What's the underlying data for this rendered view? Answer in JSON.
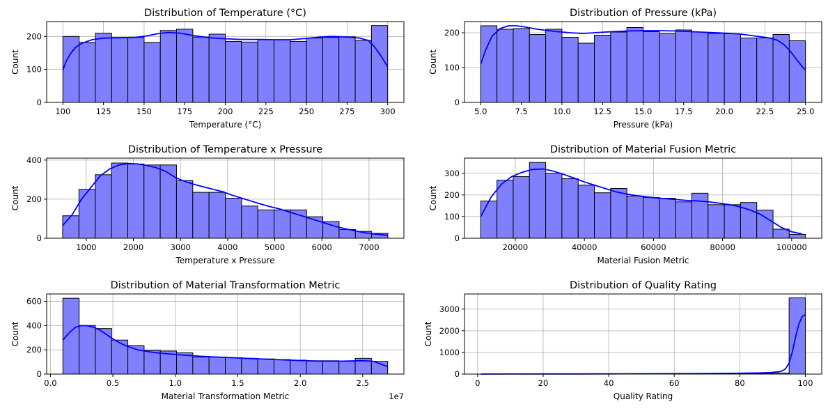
{
  "chart_data": [
    {
      "type": "bar",
      "title": "Distribution of Temperature (°C)",
      "xlabel": "Temperature (°C)",
      "ylabel": "Count",
      "xlim": [
        90,
        310
      ],
      "ylim": [
        0,
        245
      ],
      "bin_edges": [
        100,
        110,
        120,
        130,
        140,
        150,
        160,
        170,
        180,
        190,
        200,
        210,
        220,
        230,
        240,
        250,
        260,
        270,
        280,
        290,
        300
      ],
      "values": [
        200,
        182,
        210,
        197,
        197,
        182,
        218,
        222,
        198,
        207,
        185,
        183,
        190,
        190,
        185,
        195,
        197,
        199,
        188,
        233
      ],
      "kde": [
        [
          100,
          98
        ],
        [
          102,
          125
        ],
        [
          105,
          150
        ],
        [
          108,
          168
        ],
        [
          112,
          180
        ],
        [
          118,
          190
        ],
        [
          125,
          195
        ],
        [
          135,
          196
        ],
        [
          145,
          197
        ],
        [
          152,
          202
        ],
        [
          158,
          208
        ],
        [
          165,
          212
        ],
        [
          172,
          210
        ],
        [
          180,
          203
        ],
        [
          190,
          196
        ],
        [
          200,
          193
        ],
        [
          210,
          191
        ],
        [
          220,
          191
        ],
        [
          230,
          190
        ],
        [
          240,
          190
        ],
        [
          250,
          194
        ],
        [
          258,
          198
        ],
        [
          265,
          200
        ],
        [
          272,
          199
        ],
        [
          278,
          197
        ],
        [
          283,
          195
        ],
        [
          288,
          188
        ],
        [
          292,
          168
        ],
        [
          296,
          140
        ],
        [
          300,
          108
        ]
      ],
      "xticks": [
        100,
        125,
        150,
        175,
        200,
        225,
        250,
        275,
        300
      ],
      "xtick_labels": [
        "100",
        "125",
        "150",
        "175",
        "200",
        "225",
        "250",
        "275",
        "300"
      ],
      "yticks": [
        0,
        100,
        200
      ],
      "ytick_labels": [
        "0",
        "100",
        "200"
      ],
      "bar_color": "#8080ff",
      "kde_color": "#0000ff",
      "grid": true
    },
    {
      "type": "bar",
      "title": "Distribution of Pressure (kPa)",
      "xlabel": "Pressure (kPa)",
      "ylabel": "Count",
      "xlim": [
        4,
        26
      ],
      "ylim": [
        0,
        232
      ],
      "bin_edges": [
        5,
        6,
        7,
        8,
        9,
        10,
        11,
        12,
        13,
        14,
        15,
        16,
        17,
        18,
        19,
        20,
        21,
        22,
        23,
        24,
        25
      ],
      "values": [
        220,
        210,
        212,
        195,
        210,
        187,
        170,
        193,
        202,
        215,
        203,
        197,
        208,
        202,
        198,
        197,
        185,
        185,
        195,
        177
      ],
      "kde": [
        [
          5,
          110
        ],
        [
          5.3,
          150
        ],
        [
          5.7,
          190
        ],
        [
          6.2,
          212
        ],
        [
          6.7,
          220
        ],
        [
          7.2,
          220
        ],
        [
          7.8,
          216
        ],
        [
          8.5,
          210
        ],
        [
          9.5,
          204
        ],
        [
          10.5,
          200
        ],
        [
          11.3,
          198
        ],
        [
          12,
          200
        ],
        [
          13,
          203
        ],
        [
          14,
          205
        ],
        [
          15,
          206
        ],
        [
          16,
          206
        ],
        [
          17,
          205
        ],
        [
          18,
          203
        ],
        [
          19,
          201
        ],
        [
          20,
          199
        ],
        [
          21,
          196
        ],
        [
          22,
          190
        ],
        [
          22.8,
          185
        ],
        [
          23.3,
          178
        ],
        [
          23.7,
          165
        ],
        [
          24.1,
          145
        ],
        [
          24.5,
          120
        ],
        [
          25,
          92
        ]
      ],
      "xticks": [
        5,
        7.5,
        10,
        12.5,
        15,
        17.5,
        20,
        22.5,
        25
      ],
      "xtick_labels": [
        "5.0",
        "7.5",
        "10.0",
        "12.5",
        "15.0",
        "17.5",
        "20.0",
        "22.5",
        "25.0"
      ],
      "yticks": [
        0,
        100,
        200
      ],
      "ytick_labels": [
        "0",
        "100",
        "200"
      ],
      "bar_color": "#8080ff",
      "kde_color": "#0000ff",
      "grid": true
    },
    {
      "type": "bar",
      "title": "Distribution of Temperature x Pressure",
      "xlabel": "Temperature x Pressure",
      "ylabel": "Count",
      "xlim": [
        160,
        7740
      ],
      "ylim": [
        0,
        410
      ],
      "bin_edges": [
        500,
        845,
        1190,
        1535,
        1880,
        2225,
        2570,
        2915,
        3260,
        3605,
        3950,
        4295,
        4640,
        4985,
        5330,
        5675,
        6020,
        6365,
        6710,
        7055,
        7400
      ],
      "values": [
        115,
        250,
        325,
        385,
        380,
        375,
        375,
        295,
        235,
        235,
        205,
        165,
        145,
        145,
        145,
        110,
        85,
        45,
        35,
        25
      ],
      "kde": [
        [
          500,
          65
        ],
        [
          700,
          120
        ],
        [
          900,
          200
        ],
        [
          1100,
          260
        ],
        [
          1300,
          320
        ],
        [
          1500,
          355
        ],
        [
          1700,
          375
        ],
        [
          1900,
          383
        ],
        [
          2100,
          380
        ],
        [
          2300,
          372
        ],
        [
          2500,
          360
        ],
        [
          2700,
          340
        ],
        [
          2900,
          310
        ],
        [
          3100,
          290
        ],
        [
          3300,
          275
        ],
        [
          3500,
          262
        ],
        [
          3700,
          250
        ],
        [
          3900,
          238
        ],
        [
          4100,
          220
        ],
        [
          4300,
          205
        ],
        [
          4500,
          190
        ],
        [
          4700,
          175
        ],
        [
          4900,
          162
        ],
        [
          5100,
          150
        ],
        [
          5300,
          135
        ],
        [
          5500,
          120
        ],
        [
          5700,
          105
        ],
        [
          5900,
          90
        ],
        [
          6100,
          75
        ],
        [
          6300,
          60
        ],
        [
          6500,
          48
        ],
        [
          6700,
          38
        ],
        [
          6900,
          28
        ],
        [
          7100,
          22
        ],
        [
          7400,
          15
        ]
      ],
      "xticks": [
        1000,
        2000,
        3000,
        4000,
        5000,
        6000,
        7000
      ],
      "xtick_labels": [
        "1000",
        "2000",
        "3000",
        "4000",
        "5000",
        "6000",
        "7000"
      ],
      "yticks": [
        0,
        200,
        400
      ],
      "ytick_labels": [
        "0",
        "200",
        "400"
      ],
      "bar_color": "#8080ff",
      "kde_color": "#0000ff",
      "grid": true
    },
    {
      "type": "bar",
      "title": "Distribution of Material Fusion Metric",
      "xlabel": "Material Fusion Metric",
      "ylabel": "Count",
      "xlim": [
        5300,
        108700
      ],
      "ylim": [
        0,
        370
      ],
      "bin_edges": [
        10000,
        14700,
        19400,
        24100,
        28800,
        33500,
        38200,
        42900,
        47600,
        52300,
        57000,
        61700,
        66400,
        71100,
        75800,
        80500,
        85200,
        89900,
        94600,
        99300,
        104000
      ],
      "values": [
        172,
        268,
        285,
        350,
        300,
        275,
        245,
        210,
        230,
        195,
        188,
        185,
        168,
        208,
        155,
        155,
        165,
        130,
        42,
        18
      ],
      "kde": [
        [
          10000,
          100
        ],
        [
          13000,
          190
        ],
        [
          16000,
          250
        ],
        [
          19000,
          285
        ],
        [
          22000,
          305
        ],
        [
          25000,
          318
        ],
        [
          28000,
          320
        ],
        [
          31000,
          310
        ],
        [
          34000,
          295
        ],
        [
          37000,
          278
        ],
        [
          40000,
          260
        ],
        [
          43000,
          245
        ],
        [
          46000,
          230
        ],
        [
          49000,
          215
        ],
        [
          52000,
          205
        ],
        [
          55000,
          197
        ],
        [
          58000,
          191
        ],
        [
          61000,
          186
        ],
        [
          64000,
          182
        ],
        [
          67000,
          178
        ],
        [
          70000,
          174
        ],
        [
          73000,
          172
        ],
        [
          76000,
          168
        ],
        [
          79000,
          162
        ],
        [
          82000,
          155
        ],
        [
          85000,
          145
        ],
        [
          88000,
          130
        ],
        [
          91000,
          110
        ],
        [
          94000,
          80
        ],
        [
          97000,
          50
        ],
        [
          100000,
          30
        ],
        [
          103000,
          20
        ]
      ],
      "xticks": [
        20000,
        40000,
        60000,
        80000,
        100000
      ],
      "xtick_labels": [
        "20000",
        "40000",
        "60000",
        "80000",
        "100000"
      ],
      "yticks": [
        0,
        100,
        200,
        300
      ],
      "ytick_labels": [
        "0",
        "100",
        "200",
        "300"
      ],
      "bar_color": "#8080ff",
      "kde_color": "#0000ff",
      "grid": true
    },
    {
      "type": "bar",
      "title": "Distribution of Material Transformation Metric",
      "xlabel": "Material Transformation Metric",
      "ylabel": "Count",
      "offset_text": "1e7",
      "xlim": [
        -300000,
        28300000
      ],
      "ylim": [
        0,
        660
      ],
      "bin_edges": [
        1000000,
        2300000,
        3600000,
        4900000,
        6200000,
        7500000,
        8800000,
        10100000,
        11400000,
        12700000,
        14000000,
        15300000,
        16600000,
        17900000,
        19200000,
        20500000,
        21800000,
        23100000,
        24400000,
        25700000,
        27000000
      ],
      "values": [
        625,
        400,
        375,
        280,
        235,
        195,
        190,
        175,
        140,
        140,
        135,
        130,
        125,
        120,
        115,
        110,
        110,
        105,
        130,
        105
      ],
      "kde": [
        [
          1000000,
          280
        ],
        [
          1500000,
          340
        ],
        [
          2000000,
          385
        ],
        [
          2500000,
          400
        ],
        [
          3000000,
          398
        ],
        [
          3500000,
          385
        ],
        [
          4000000,
          360
        ],
        [
          4500000,
          325
        ],
        [
          5000000,
          290
        ],
        [
          5500000,
          260
        ],
        [
          6000000,
          235
        ],
        [
          7000000,
          200
        ],
        [
          8000000,
          182
        ],
        [
          9000000,
          170
        ],
        [
          10000000,
          162
        ],
        [
          11000000,
          154
        ],
        [
          12000000,
          147
        ],
        [
          13000000,
          142
        ],
        [
          14000000,
          138
        ],
        [
          15000000,
          133
        ],
        [
          16000000,
          128
        ],
        [
          17000000,
          124
        ],
        [
          18000000,
          120
        ],
        [
          19000000,
          116
        ],
        [
          20000000,
          112
        ],
        [
          21000000,
          108
        ],
        [
          22000000,
          106
        ],
        [
          23000000,
          106
        ],
        [
          24000000,
          108
        ],
        [
          25000000,
          110
        ],
        [
          25800000,
          106
        ],
        [
          26400000,
          85
        ],
        [
          27000000,
          60
        ]
      ],
      "xticks": [
        0,
        5000000,
        10000000,
        15000000,
        20000000,
        25000000
      ],
      "xtick_labels": [
        "0.0",
        "0.5",
        "1.0",
        "1.5",
        "2.0",
        "2.5"
      ],
      "yticks": [
        0,
        200,
        400,
        600
      ],
      "ytick_labels": [
        "0",
        "200",
        "400",
        "600"
      ],
      "bar_color": "#8080ff",
      "kde_color": "#0000ff",
      "grid": true
    },
    {
      "type": "bar",
      "title": "Distribution of Quality Rating",
      "xlabel": "Quality Rating",
      "ylabel": "Count",
      "xlim": [
        -4,
        105
      ],
      "ylim": [
        0,
        3700
      ],
      "bin_edges": [
        1,
        5.95,
        10.9,
        15.85,
        20.8,
        25.75,
        30.7,
        35.65,
        40.6,
        45.55,
        50.5,
        55.45,
        60.4,
        65.35,
        70.3,
        75.25,
        80.2,
        85.15,
        90.1,
        95.05,
        100
      ],
      "values": [
        2,
        2,
        3,
        3,
        4,
        4,
        5,
        6,
        7,
        8,
        9,
        11,
        13,
        15,
        18,
        22,
        28,
        35,
        50,
        3520
      ],
      "kde": [
        [
          1,
          1
        ],
        [
          10,
          2
        ],
        [
          20,
          5
        ],
        [
          30,
          8
        ],
        [
          40,
          11
        ],
        [
          50,
          15
        ],
        [
          60,
          20
        ],
        [
          70,
          28
        ],
        [
          80,
          40
        ],
        [
          85,
          50
        ],
        [
          88,
          65
        ],
        [
          90,
          80
        ],
        [
          92,
          110
        ],
        [
          93,
          150
        ],
        [
          94,
          250
        ],
        [
          95,
          500
        ],
        [
          96,
          1000
        ],
        [
          97,
          1700
        ],
        [
          98,
          2300
        ],
        [
          99,
          2650
        ],
        [
          100,
          2750
        ]
      ],
      "xticks": [
        0,
        20,
        40,
        60,
        80,
        100
      ],
      "xtick_labels": [
        "0",
        "20",
        "40",
        "60",
        "80",
        "100"
      ],
      "yticks": [
        0,
        1000,
        2000,
        3000
      ],
      "ytick_labels": [
        "0",
        "1000",
        "2000",
        "3000"
      ],
      "bar_color": "#8080ff",
      "kde_color": "#0000ff",
      "grid": true
    }
  ]
}
